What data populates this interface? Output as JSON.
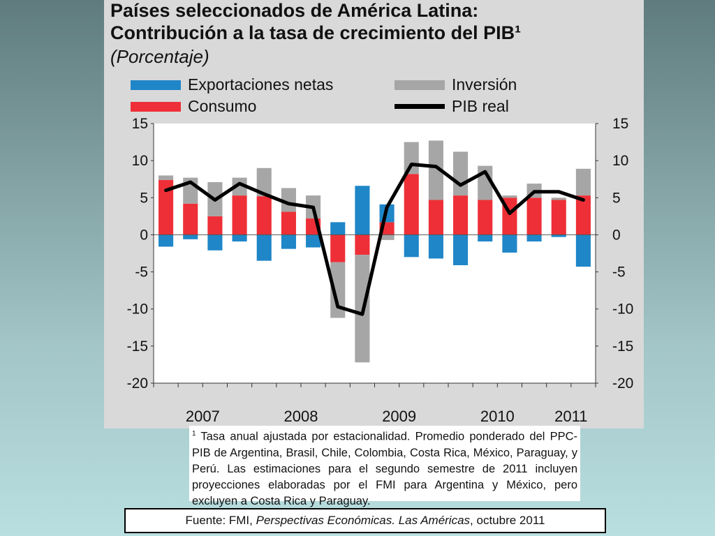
{
  "colors": {
    "exportaciones": "#1f86c8",
    "inversion": "#a6a6a6",
    "consumo": "#ee2f37",
    "pib": "#000000",
    "plot_bg": "#ffffff"
  },
  "legend": [
    {
      "key": "exportaciones",
      "label": "Exportaciones netas"
    },
    {
      "key": "inversion",
      "label": "Inversión"
    },
    {
      "key": "consumo",
      "label": "Consumo"
    },
    {
      "key": "pib",
      "label": "PIB real"
    }
  ],
  "footnote": {
    "marker": "1",
    "text": "Tasa anual ajustada por estacionalidad. Promedio ponderado del PPC-PIB de Argentina, Brasil, Chile, Colombia, Costa Rica, México, Paraguay, y Perú. Las estimaciones para el segundo semestre de 2011 incluyen proyecciones elaboradas por el FMI para Argentina y México, pero excluyen a Costa Rica y Paraguay."
  },
  "source": {
    "prefix": "Fuente:  FMI, ",
    "italic": "Perspectivas Económicas. Las Américas",
    "suffix": ", octubre 2011"
  },
  "chart_data": {
    "type": "bar",
    "title": "Países seleccionados de América Latina:",
    "title_line2": "Contribución a la tasa de crecimiento del PIB¹",
    "subtitle": "(Porcentaje)",
    "ylim": [
      -20,
      15
    ],
    "yticks": [
      "15",
      "10",
      "5",
      "0",
      "-5",
      "-10",
      "-15",
      "-20"
    ],
    "year_labels": [
      {
        "label": "2007",
        "at_period": 2.0
      },
      {
        "label": "2008",
        "at_period": 6.0
      },
      {
        "label": "2009",
        "at_period": 10.0
      },
      {
        "label": "2010",
        "at_period": 14.0
      },
      {
        "label": "2011",
        "at_period": 17.0
      }
    ],
    "legend_position": "top",
    "grid": false,
    "periods": 18,
    "series": [
      {
        "name": "Consumo",
        "type": "bar",
        "values": [
          7.4,
          4.2,
          2.5,
          5.3,
          5.2,
          3.1,
          2.2,
          -3.7,
          -2.7,
          1.7,
          8.2,
          4.7,
          5.3,
          4.7,
          5.0,
          5.0,
          4.7,
          5.3
        ]
      },
      {
        "name": "Inversión",
        "type": "bar",
        "values": [
          0.6,
          3.5,
          4.6,
          2.4,
          3.8,
          3.2,
          3.1,
          -7.5,
          -14.5,
          -0.7,
          4.3,
          8.0,
          5.9,
          4.6,
          0.3,
          1.9,
          0.3,
          3.6
        ]
      },
      {
        "name": "Exportaciones netas",
        "type": "bar",
        "values": [
          -1.6,
          -0.6,
          -2.1,
          -0.9,
          -3.5,
          -1.9,
          -1.7,
          1.7,
          6.6,
          2.4,
          -3.0,
          -3.2,
          -4.1,
          -0.9,
          -2.4,
          -0.9,
          -0.3,
          -4.3
        ]
      },
      {
        "name": "PIB real",
        "type": "line",
        "values": [
          6.0,
          7.1,
          4.7,
          6.9,
          5.5,
          4.2,
          3.7,
          -9.7,
          -10.7,
          3.7,
          9.5,
          9.2,
          6.7,
          8.5,
          2.9,
          5.8,
          5.8,
          4.7
        ]
      }
    ]
  }
}
